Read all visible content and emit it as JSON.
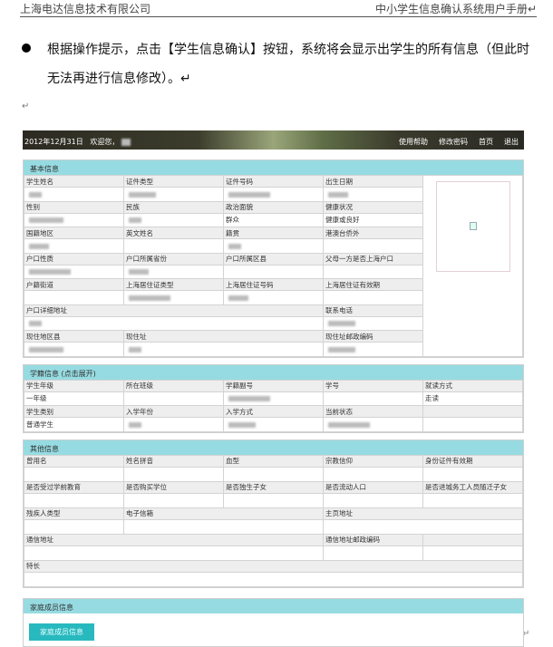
{
  "doc_header": {
    "company": "上海电达信息技术有限公司",
    "manual": "中小学生信息确认系统用户手册↵"
  },
  "paragraph": {
    "line1": "根据操作提示，点击【学生信息确认】按钮，系统将会显示出学生的所有信息（但此时",
    "line2": "无法再进行信息修改）。↵"
  },
  "return_mark": "↵",
  "banner": {
    "date": "2012年12月31日",
    "welcome": "欢迎您，",
    "nav": [
      "使用帮助",
      "修改密码",
      "首页",
      "退出"
    ]
  },
  "colors": {
    "section_header": "#96dbe1",
    "button": "#28b9bf"
  },
  "sections": [
    {
      "title": "基本信息",
      "cols": 4,
      "photo": true,
      "rows": [
        [
          {
            "label": "学生姓名",
            "redacted": true
          },
          {
            "label": "证件类型",
            "redacted": true
          },
          {
            "label": "证件号码",
            "redacted": true
          },
          {
            "label": "出生日期",
            "redacted": true
          }
        ],
        [
          {
            "label": "性别",
            "redacted": true
          },
          {
            "label": "民族",
            "redacted": true
          },
          {
            "label": "政治面貌",
            "value": "群众"
          },
          {
            "label": "健康状况",
            "value": "健康或良好"
          }
        ],
        [
          {
            "label": "国籍地区",
            "redacted": true
          },
          {
            "label": "英文姓名"
          },
          {
            "label": "籍贯",
            "redacted": true
          },
          {
            "label": "港澳台侨外"
          }
        ],
        [
          {
            "label": "户口性质",
            "redacted": true
          },
          {
            "label": "户口所属省份",
            "redacted": true
          },
          {
            "label": "户口所属区县"
          },
          {
            "label": "父母一方是否上海户口"
          }
        ],
        [
          {
            "label": "户籍街道"
          },
          {
            "label": "上海居住证类型",
            "redacted": true
          },
          {
            "label": "上海居住证号码",
            "redacted": true
          },
          {
            "label": "上海居住证有效期"
          }
        ],
        [
          {
            "label": "户口详细地址",
            "span": 3,
            "redacted": true
          },
          {
            "label": "联系电话",
            "redacted": true
          }
        ],
        [
          {
            "label": "现住地区县",
            "redacted": true
          },
          {
            "label": "现住址",
            "span": 2,
            "redacted": true
          },
          {
            "label": "现住址邮政编码",
            "redacted": true
          }
        ]
      ]
    },
    {
      "title": "学籍信息 (点击展开)",
      "cols": 5,
      "rows": [
        [
          {
            "label": "学生年级",
            "value": "一年级"
          },
          {
            "label": "所在班级"
          },
          {
            "label": "学籍副号",
            "redacted": true
          },
          {
            "label": "学号"
          },
          {
            "label": "就读方式",
            "value": "走读"
          }
        ],
        [
          {
            "label": "学生类别",
            "value": "普通学生"
          },
          {
            "label": "入学年份",
            "redacted": true
          },
          {
            "label": "入学方式",
            "redacted": true
          },
          {
            "label": "当前状态",
            "redacted": true
          },
          {
            "label": ""
          }
        ]
      ]
    },
    {
      "title": "其他信息",
      "cols": 5,
      "cls": "other",
      "rows": [
        [
          {
            "label": "曾用名"
          },
          {
            "label": "姓名拼音"
          },
          {
            "label": "血型"
          },
          {
            "label": "宗教信仰"
          },
          {
            "label": "身份证件有效期"
          }
        ],
        [
          {
            "label": "是否受过学前教育"
          },
          {
            "label": "是否购买学位"
          },
          {
            "label": "是否独生子女"
          },
          {
            "label": "是否流动人口"
          },
          {
            "label": "是否进城务工人员随迁子女"
          }
        ],
        [
          {
            "label": "残疾人类型"
          },
          {
            "label": "电子信箱",
            "span": 2
          },
          {
            "label": "主页地址",
            "span": 2
          }
        ],
        [
          {
            "label": "通信地址",
            "span": 3
          },
          {
            "label": "通信地址邮政编码"
          },
          {
            "label": ""
          }
        ],
        [
          {
            "label": "特长",
            "span": 5
          }
        ]
      ]
    }
  ],
  "family": {
    "title": "家庭成员信息",
    "button": "家庭成员信息"
  }
}
